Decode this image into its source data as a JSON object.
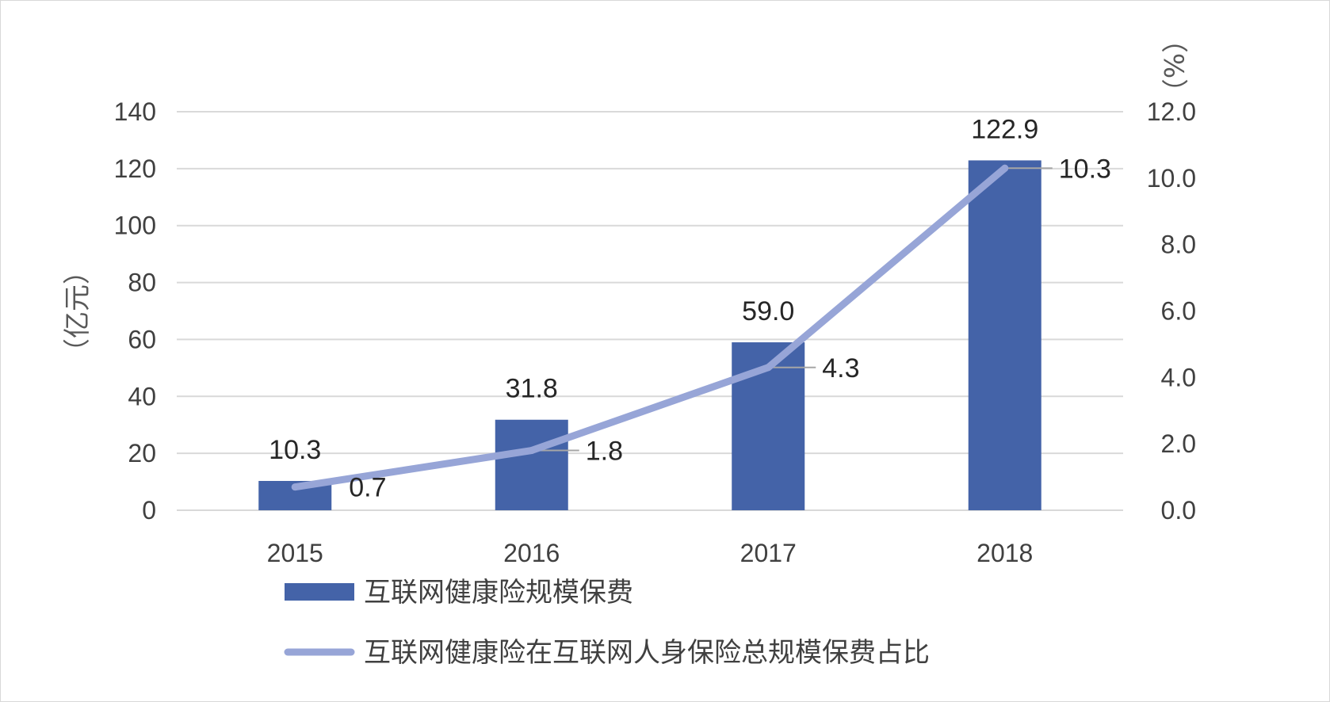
{
  "chart_data": {
    "type": "bar",
    "categories": [
      "2015",
      "2016",
      "2017",
      "2018"
    ],
    "series": [
      {
        "name": "互联网健康险规模保费",
        "type": "bar",
        "axis": "left",
        "values": [
          10.3,
          31.8,
          59.0,
          122.9
        ],
        "labels": [
          "10.3",
          "31.8",
          "59.0",
          "122.9"
        ],
        "color": "#4463A8"
      },
      {
        "name": "互联网健康险在互联网人身保险总规模保费占比",
        "type": "line",
        "axis": "right",
        "values": [
          0.7,
          1.8,
          4.3,
          10.3
        ],
        "labels": [
          "0.7",
          "1.8",
          "4.3",
          "10.3"
        ],
        "color": "#97A5D7"
      }
    ],
    "y_left": {
      "label": "（亿元）",
      "ylim": [
        0,
        140
      ],
      "ticks": [
        "0",
        "20",
        "40",
        "60",
        "80",
        "100",
        "120",
        "140"
      ]
    },
    "y_right": {
      "label": "（%）",
      "ylim": [
        0,
        12
      ],
      "ticks": [
        "0.0",
        "2.0",
        "4.0",
        "6.0",
        "8.0",
        "10.0",
        "12.0"
      ]
    },
    "grid": true,
    "legend_position": "bottom"
  }
}
